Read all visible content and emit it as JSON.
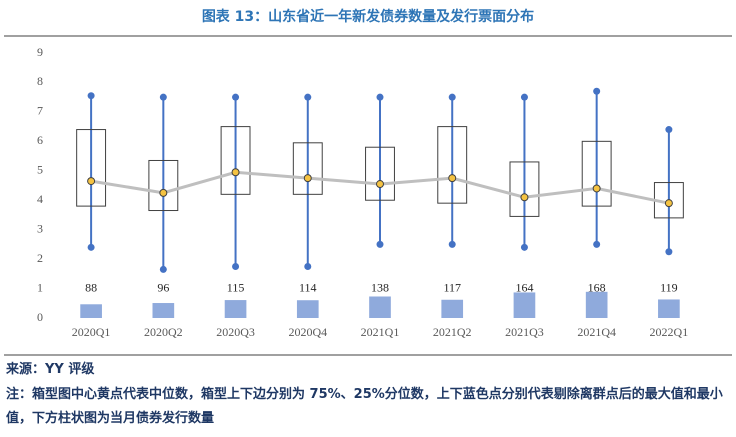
{
  "chart_data": {
    "type": "box",
    "title": "图表 13：山东省近一年新发债券数量及发行票面分布",
    "categories": [
      "2020Q1",
      "2020Q2",
      "2020Q3",
      "2020Q4",
      "2021Q1",
      "2021Q2",
      "2021Q3",
      "2021Q4",
      "2022Q1"
    ],
    "max": [
      7.55,
      7.5,
      7.5,
      7.5,
      7.5,
      7.5,
      7.5,
      7.7,
      6.4
    ],
    "q3": [
      6.4,
      5.35,
      6.5,
      5.95,
      5.8,
      6.5,
      5.3,
      6.0,
      4.6
    ],
    "median": [
      4.65,
      4.25,
      4.95,
      4.75,
      4.55,
      4.75,
      4.1,
      4.4,
      3.9
    ],
    "q1": [
      3.8,
      3.65,
      4.2,
      4.2,
      4.0,
      3.9,
      3.45,
      3.8,
      3.4
    ],
    "min": [
      2.4,
      1.65,
      1.75,
      1.75,
      2.5,
      2.5,
      2.4,
      2.5,
      2.25
    ],
    "box_color": "#404040",
    "whisker_color": "#4472c4",
    "median_color": "#f5c342",
    "median_line_color": "#bfbfbf",
    "bars": {
      "values": [
        88,
        96,
        115,
        114,
        138,
        117,
        164,
        168,
        119
      ],
      "color": "#8faadc",
      "axis": "y2"
    },
    "ylim": [
      0,
      9
    ],
    "yticks": [
      0,
      1,
      2,
      3,
      4,
      5,
      6,
      7,
      8,
      9
    ],
    "y2lim": [
      0,
      1700
    ]
  },
  "source": "来源：YY 评级",
  "note": "注：箱型图中心黄点代表中位数，箱型上下边分别为 75%、25%分位数，上下蓝色点分别代表剔除离群点后的最大值和最小值，下方柱状图为当月债券发行数量"
}
